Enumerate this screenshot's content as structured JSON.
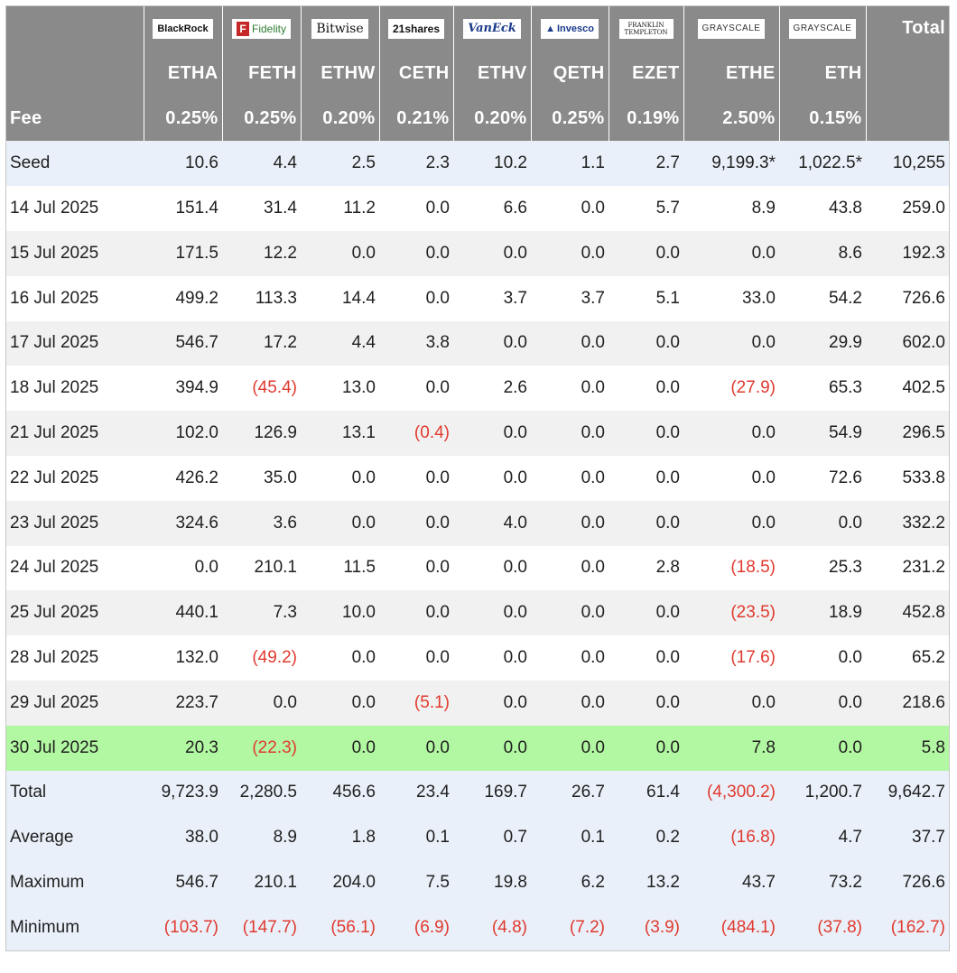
{
  "logos": [
    "BlackRock",
    "Fidelity",
    "Bitwise",
    "21shares",
    "VanEck",
    "Invesco",
    "FRANKLIN TEMPLETON",
    "GRAYSCALE",
    "GRAYSCALE"
  ],
  "header": {
    "total_label": "Total",
    "tickers": [
      "ETHA",
      "FETH",
      "ETHW",
      "CETH",
      "ETHV",
      "QETH",
      "EZET",
      "ETHE",
      "ETH"
    ],
    "fee_label": "Fee",
    "fees": [
      "0.25%",
      "0.25%",
      "0.20%",
      "0.21%",
      "0.20%",
      "0.25%",
      "0.19%",
      "2.50%",
      "0.15%"
    ]
  },
  "rows": [
    {
      "label": "Seed",
      "values": [
        "10.6",
        "4.4",
        "2.5",
        "2.3",
        "10.2",
        "1.1",
        "2.7",
        "9,199.3*",
        "1,022.5*",
        "10,255"
      ]
    },
    {
      "label": "14 Jul 2025",
      "values": [
        "151.4",
        "31.4",
        "11.2",
        "0.0",
        "6.6",
        "0.0",
        "5.7",
        "8.9",
        "43.8",
        "259.0"
      ]
    },
    {
      "label": "15 Jul 2025",
      "values": [
        "171.5",
        "12.2",
        "0.0",
        "0.0",
        "0.0",
        "0.0",
        "0.0",
        "0.0",
        "8.6",
        "192.3"
      ]
    },
    {
      "label": "16 Jul 2025",
      "values": [
        "499.2",
        "113.3",
        "14.4",
        "0.0",
        "3.7",
        "3.7",
        "5.1",
        "33.0",
        "54.2",
        "726.6"
      ]
    },
    {
      "label": "17 Jul 2025",
      "values": [
        "546.7",
        "17.2",
        "4.4",
        "3.8",
        "0.0",
        "0.0",
        "0.0",
        "0.0",
        "29.9",
        "602.0"
      ]
    },
    {
      "label": "18 Jul 2025",
      "values": [
        "394.9",
        "(45.4)",
        "13.0",
        "0.0",
        "2.6",
        "0.0",
        "0.0",
        "(27.9)",
        "65.3",
        "402.5"
      ]
    },
    {
      "label": "21 Jul 2025",
      "values": [
        "102.0",
        "126.9",
        "13.1",
        "(0.4)",
        "0.0",
        "0.0",
        "0.0",
        "0.0",
        "54.9",
        "296.5"
      ]
    },
    {
      "label": "22 Jul 2025",
      "values": [
        "426.2",
        "35.0",
        "0.0",
        "0.0",
        "0.0",
        "0.0",
        "0.0",
        "0.0",
        "72.6",
        "533.8"
      ]
    },
    {
      "label": "23 Jul 2025",
      "values": [
        "324.6",
        "3.6",
        "0.0",
        "0.0",
        "4.0",
        "0.0",
        "0.0",
        "0.0",
        "0.0",
        "332.2"
      ]
    },
    {
      "label": "24 Jul 2025",
      "values": [
        "0.0",
        "210.1",
        "11.5",
        "0.0",
        "0.0",
        "0.0",
        "2.8",
        "(18.5)",
        "25.3",
        "231.2"
      ]
    },
    {
      "label": "25 Jul 2025",
      "values": [
        "440.1",
        "7.3",
        "10.0",
        "0.0",
        "0.0",
        "0.0",
        "0.0",
        "(23.5)",
        "18.9",
        "452.8"
      ]
    },
    {
      "label": "28 Jul 2025",
      "values": [
        "132.0",
        "(49.2)",
        "0.0",
        "0.0",
        "0.0",
        "0.0",
        "0.0",
        "(17.6)",
        "0.0",
        "65.2"
      ]
    },
    {
      "label": "29 Jul 2025",
      "values": [
        "223.7",
        "0.0",
        "0.0",
        "(5.1)",
        "0.0",
        "0.0",
        "0.0",
        "0.0",
        "0.0",
        "218.6"
      ]
    },
    {
      "label": "30 Jul 2025",
      "values": [
        "20.3",
        "(22.3)",
        "0.0",
        "0.0",
        "0.0",
        "0.0",
        "0.0",
        "7.8",
        "0.0",
        "5.8"
      ]
    },
    {
      "label": "Total",
      "values": [
        "9,723.9",
        "2,280.5",
        "456.6",
        "23.4",
        "169.7",
        "26.7",
        "61.4",
        "(4,300.2)",
        "1,200.7",
        "9,642.7"
      ]
    },
    {
      "label": "Average",
      "values": [
        "38.0",
        "8.9",
        "1.8",
        "0.1",
        "0.7",
        "0.1",
        "0.2",
        "(16.8)",
        "4.7",
        "37.7"
      ]
    },
    {
      "label": "Maximum",
      "values": [
        "546.7",
        "210.1",
        "204.0",
        "7.5",
        "19.8",
        "6.2",
        "13.2",
        "43.7",
        "73.2",
        "726.6"
      ]
    },
    {
      "label": "Minimum",
      "values": [
        "(103.7)",
        "(147.7)",
        "(56.1)",
        "(6.9)",
        "(4.8)",
        "(7.2)",
        "(3.9)",
        "(484.1)",
        "(37.8)",
        "(162.7)"
      ]
    }
  ]
}
